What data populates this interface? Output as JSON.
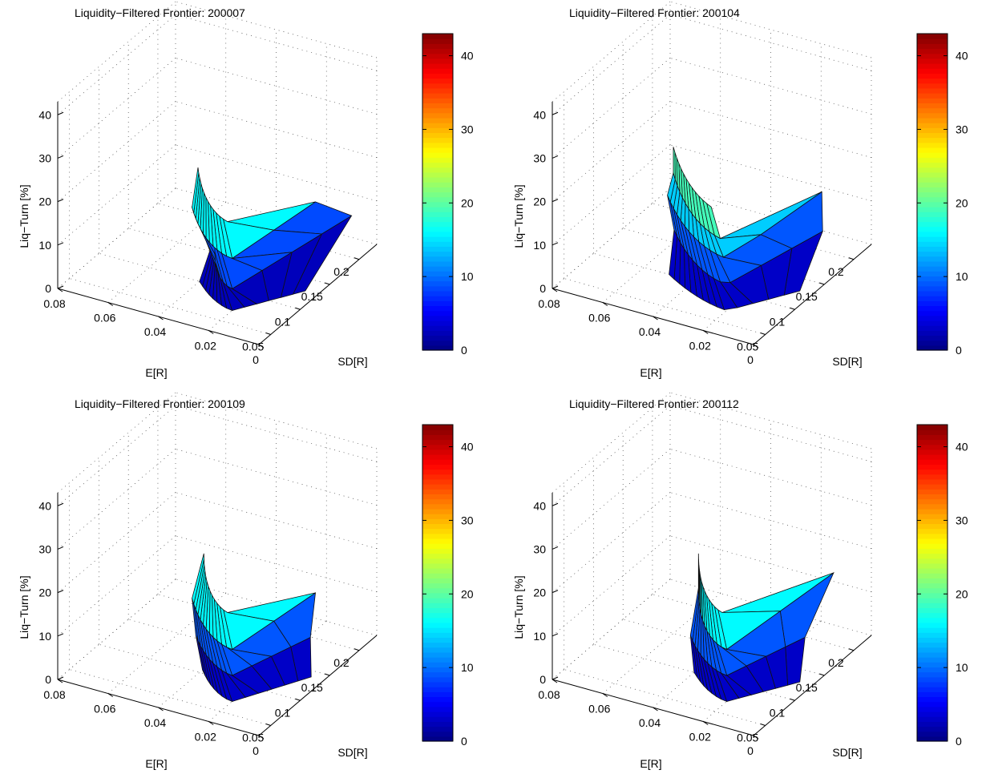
{
  "chart_data": [
    {
      "type": "surface",
      "title": "Liquidity−Filtered Frontier: 200007",
      "xlabel": "SD[R]",
      "ylabel": "E[R]",
      "zlabel": "Liq−Turn [%]",
      "xticks": [
        "0.05",
        "0.1",
        "0.15",
        "0.2"
      ],
      "yticks": [
        "0.08",
        "0.06",
        "0.04",
        "0.02",
        "0"
      ],
      "zticks": [
        "0",
        "10",
        "20",
        "30",
        "40"
      ],
      "zlim": [
        0,
        43
      ],
      "colorbar": {
        "ticks": [
          "0",
          "10",
          "20",
          "30",
          "40"
        ],
        "range": [
          0,
          43
        ],
        "colormap": "jet"
      },
      "grid": true,
      "surface": {
        "levels": [
          {
            "z": 0,
            "min_er": 0.005,
            "peak_er": 0.04,
            "sd_end": 0.13
          },
          {
            "z": 5,
            "min_er": 0.01,
            "peak_er": 0.045,
            "sd_end": 0.23
          },
          {
            "z": 12,
            "min_er": 0.015,
            "peak_er": 0.05,
            "sd_end": 0.19
          },
          {
            "z": 20,
            "min_er": 0.02,
            "peak_er": 0.05,
            "sd_end": 0.21
          }
        ]
      }
    },
    {
      "type": "surface",
      "title": "Liquidity−Filtered Frontier: 200104",
      "xlabel": "SD[R]",
      "ylabel": "E[R]",
      "zlabel": "Liq−Turn [%]",
      "xticks": [
        "0.05",
        "0.1",
        "0.15",
        "0.2"
      ],
      "yticks": [
        "0.08",
        "0.06",
        "0.04",
        "0.02",
        "0"
      ],
      "zticks": [
        "0",
        "10",
        "20",
        "30",
        "40"
      ],
      "zlim": [
        0,
        43
      ],
      "colorbar": {
        "ticks": [
          "0",
          "10",
          "20",
          "30",
          "40"
        ],
        "range": [
          0,
          43
        ],
        "colormap": "jet"
      },
      "grid": true,
      "surface": {
        "levels": [
          {
            "z": 0,
            "min_er": 0.005,
            "peak_er": 0.05,
            "sd_end": 0.13
          },
          {
            "z": 6,
            "min_er": 0.01,
            "peak_er": 0.055,
            "sd_end": 0.19
          },
          {
            "z": 12,
            "min_er": 0.015,
            "peak_er": 0.06,
            "sd_end": 0.21
          },
          {
            "z": 16,
            "min_er": 0.02,
            "peak_er": 0.06,
            "sd_end": 0.23
          },
          {
            "z": 22,
            "min_er": 0.025,
            "peak_er": 0.06,
            "sd_end": 0.23
          }
        ]
      }
    },
    {
      "type": "surface",
      "title": "Liquidity−Filtered Frontier: 200109",
      "xlabel": "SD[R]",
      "ylabel": "E[R]",
      "zlabel": "Liq−Turn [%]",
      "xticks": [
        "0.05",
        "0.1",
        "0.15",
        "0.2"
      ],
      "yticks": [
        "0.08",
        "0.06",
        "0.04",
        "0.02",
        "0"
      ],
      "zticks": [
        "0",
        "10",
        "20",
        "30",
        "40"
      ],
      "zlim": [
        0,
        43
      ],
      "colorbar": {
        "ticks": [
          "0",
          "10",
          "20",
          "30",
          "40"
        ],
        "range": [
          0,
          43
        ],
        "colormap": "jet"
      },
      "grid": true,
      "surface": {
        "levels": [
          {
            "z": 0,
            "min_er": 0.005,
            "peak_er": 0.04,
            "sd_end": 0.14
          },
          {
            "z": 6,
            "min_er": 0.01,
            "peak_er": 0.045,
            "sd_end": 0.16
          },
          {
            "z": 12,
            "min_er": 0.015,
            "peak_er": 0.05,
            "sd_end": 0.19
          },
          {
            "z": 20,
            "min_er": 0.02,
            "peak_er": 0.05,
            "sd_end": 0.23
          }
        ]
      }
    },
    {
      "type": "surface",
      "title": "Liquidity−Filtered Frontier: 200112",
      "xlabel": "SD[R]",
      "ylabel": "E[R]",
      "zlabel": "Liq−Turn [%]",
      "xticks": [
        "0.05",
        "0.1",
        "0.15",
        "0.2"
      ],
      "yticks": [
        "0.08",
        "0.06",
        "0.04",
        "0.02",
        "0"
      ],
      "zticks": [
        "0",
        "10",
        "20",
        "30",
        "40"
      ],
      "zlim": [
        0,
        43
      ],
      "colorbar": {
        "ticks": [
          "0",
          "10",
          "20",
          "30",
          "40"
        ],
        "range": [
          0,
          43
        ],
        "colormap": "jet"
      },
      "grid": true,
      "surface": {
        "levels": [
          {
            "z": 0,
            "min_er": 0.005,
            "peak_er": 0.04,
            "sd_end": 0.13
          },
          {
            "z": 6,
            "min_er": 0.01,
            "peak_er": 0.045,
            "sd_end": 0.16
          },
          {
            "z": 12,
            "min_er": 0.015,
            "peak_er": 0.05,
            "sd_end": 0.23
          },
          {
            "z": 20,
            "min_er": 0.02,
            "peak_er": 0.05,
            "sd_end": 0.23
          }
        ]
      }
    }
  ]
}
